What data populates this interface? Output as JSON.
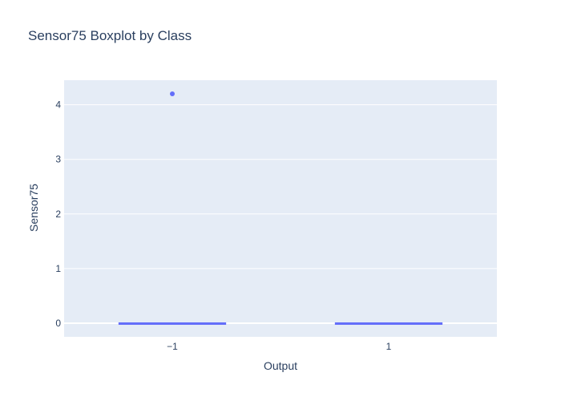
{
  "chart_data": {
    "type": "box",
    "title": "Sensor75 Boxplot by Class",
    "xlabel": "Output",
    "ylabel": "Sensor75",
    "categories": [
      "−1",
      "1"
    ],
    "ylim": [
      -0.25,
      4.45
    ],
    "yticks": [
      0,
      1,
      2,
      3,
      4
    ],
    "grid": true,
    "colors": {
      "box": "#636efa",
      "plot_bg": "#e5ecf6",
      "grid": "#ffffff",
      "text": "#2a3f5f"
    },
    "boxes": [
      {
        "category": "−1",
        "q1": 0,
        "median": 0,
        "q3": 0,
        "lower_fence": 0,
        "upper_fence": 0,
        "outliers": [
          4.2
        ]
      },
      {
        "category": "1",
        "q1": 0,
        "median": 0,
        "q3": 0,
        "lower_fence": 0,
        "upper_fence": 0,
        "outliers": []
      }
    ]
  }
}
